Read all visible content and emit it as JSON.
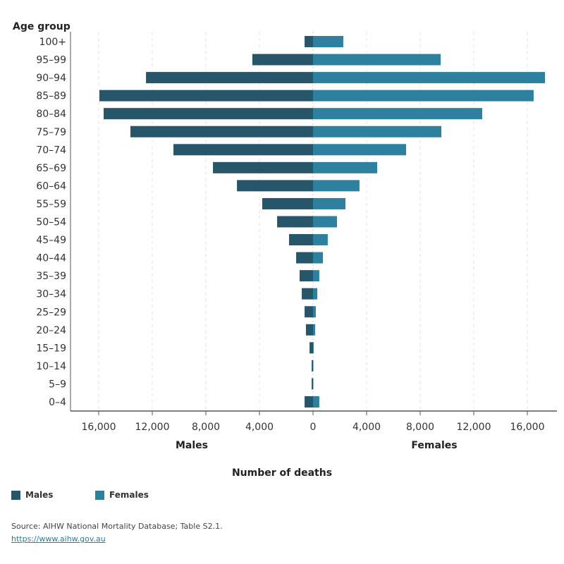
{
  "chart_data": {
    "type": "bar",
    "orientation": "horizontal-population-pyramid",
    "yaxis_title": "Age group",
    "xlabel": "Number of deaths",
    "left_label": "Males",
    "right_label": "Females",
    "categories": [
      "100+",
      "95–99",
      "90–94",
      "85–89",
      "80–84",
      "75–79",
      "70–74",
      "65–69",
      "60–64",
      "55–59",
      "50–54",
      "45–49",
      "40–44",
      "35–39",
      "30–34",
      "25–29",
      "20–24",
      "15–19",
      "10–14",
      "5–9",
      "0–4"
    ],
    "series": [
      {
        "name": "Males",
        "color": "#27566b",
        "values": [
          630,
          4530,
          12470,
          15950,
          15630,
          13630,
          10420,
          7470,
          5680,
          3790,
          2680,
          1790,
          1260,
          1000,
          840,
          630,
          530,
          260,
          100,
          100,
          630
        ]
      },
      {
        "name": "Females",
        "color": "#2e819e",
        "values": [
          2260,
          9530,
          17320,
          16470,
          12630,
          9580,
          6950,
          4790,
          3470,
          2420,
          1790,
          1100,
          740,
          470,
          320,
          210,
          160,
          50,
          20,
          20,
          470
        ]
      }
    ],
    "x_ticks_left": [
      "16,000",
      "12,000",
      "8,000",
      "4,000",
      "0"
    ],
    "x_ticks_right": [
      "4,000",
      "8,000",
      "12,000",
      "16,000"
    ],
    "xlim": [
      -18000,
      18000
    ],
    "grid": "vertical dashed",
    "legend": "bottom-left"
  },
  "legend": {
    "males": "Males",
    "females": "Females"
  },
  "source": {
    "text": "Source: AIHW National Mortality Database; Table S2.1.",
    "link": "https://www.aihw.gov.au"
  }
}
